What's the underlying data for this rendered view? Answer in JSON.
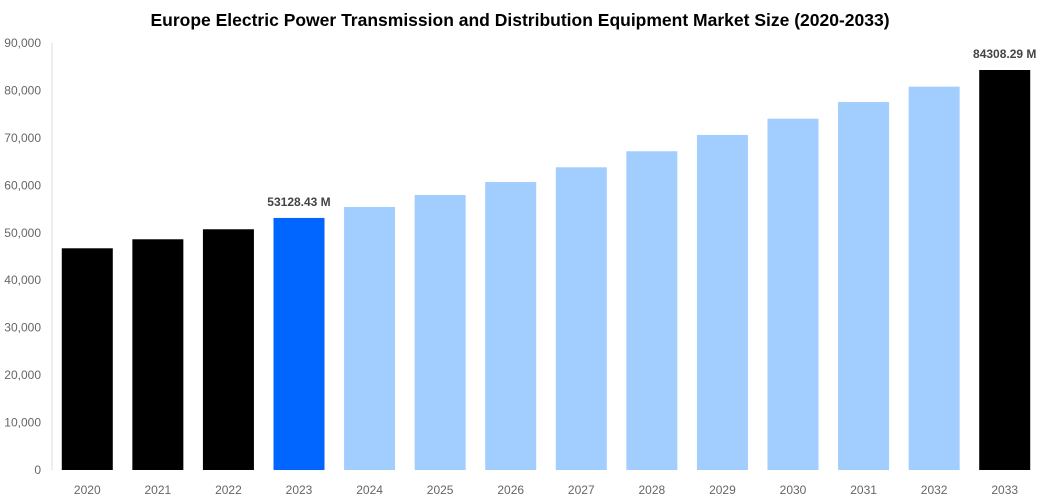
{
  "chart_data": {
    "type": "bar",
    "title": "Europe Electric Power Transmission and Distribution Equipment Market Size (2020-2033)",
    "xlabel": "",
    "ylabel": "",
    "ylim": [
      0,
      90000
    ],
    "yticks": [
      "0",
      "10,000",
      "20,000",
      "30,000",
      "40,000",
      "50,000",
      "60,000",
      "70,000",
      "80,000",
      "90,000"
    ],
    "grid": false,
    "categories": [
      "2020",
      "2021",
      "2022",
      "2023",
      "2024",
      "2025",
      "2026",
      "2027",
      "2028",
      "2029",
      "2030",
      "2031",
      "2032",
      "2033"
    ],
    "values": [
      46730,
      48630,
      50740,
      53128.43,
      55440,
      57970,
      60710,
      63800,
      67180,
      70620,
      74050,
      77570,
      80800,
      84308.29
    ],
    "colors": [
      "#000000",
      "#000000",
      "#000000",
      "#0066ff",
      "#a2cdff",
      "#a2cdff",
      "#a2cdff",
      "#a2cdff",
      "#a2cdff",
      "#a2cdff",
      "#a2cdff",
      "#a2cdff",
      "#a2cdff",
      "#000000"
    ],
    "data_labels": [
      {
        "category": "2023",
        "text": "53128.43 M"
      },
      {
        "category": "2033",
        "text": "84308.29 M"
      }
    ]
  }
}
